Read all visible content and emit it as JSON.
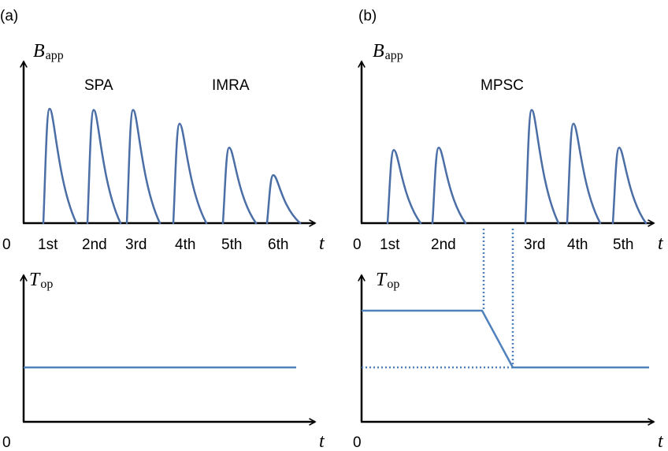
{
  "panel_a": {
    "tag": "(a)",
    "top": {
      "y_var": "B",
      "y_sub": "app",
      "x_var": "t",
      "origin": "0",
      "labels": [
        "SPA",
        "IMRA"
      ],
      "pulses": [
        {
          "label": "1st",
          "amplitude": 1.0
        },
        {
          "label": "2nd",
          "amplitude": 0.99
        },
        {
          "label": "3rd",
          "amplitude": 0.99
        },
        {
          "label": "4th",
          "amplitude": 0.87
        },
        {
          "label": "5th",
          "amplitude": 0.66
        },
        {
          "label": "6th",
          "amplitude": 0.42
        }
      ]
    },
    "bottom": {
      "y_var": "T",
      "y_sub": "op",
      "x_var": "t",
      "origin": "0",
      "level": "constant"
    }
  },
  "panel_b": {
    "tag": "(b)",
    "top": {
      "y_var": "B",
      "y_sub": "app",
      "x_var": "t",
      "origin": "0",
      "labels": [
        "MPSC"
      ],
      "pulses": [
        {
          "label": "1st",
          "amplitude": 0.64
        },
        {
          "label": "2nd",
          "amplitude": 0.66
        },
        {
          "label": "3rd",
          "amplitude": 0.99
        },
        {
          "label": "4th",
          "amplitude": 0.87
        },
        {
          "label": "5th",
          "amplitude": 0.66
        }
      ]
    },
    "bottom": {
      "y_var": "T",
      "y_sub": "op",
      "x_var": "t",
      "origin": "0",
      "level": "high then low"
    }
  },
  "colors": {
    "curve": "#4a6ea5",
    "line": "#4f81bd",
    "axis": "#000000"
  }
}
